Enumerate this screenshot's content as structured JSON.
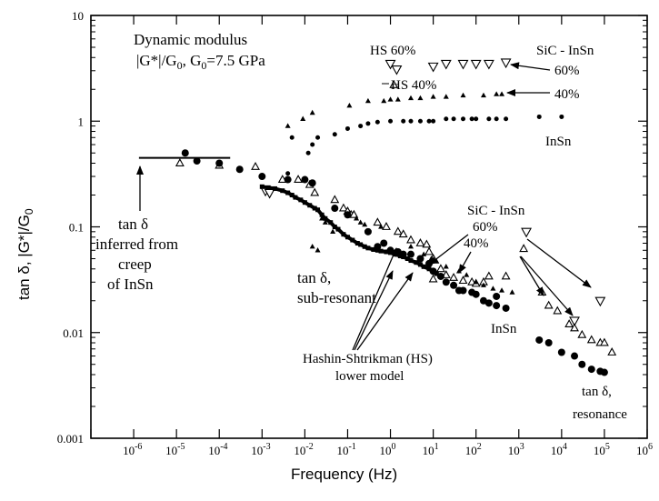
{
  "chart_data": {
    "type": "scatter",
    "title": "",
    "xlabel": "Frequency (Hz)",
    "ylabel": "tan δ, |G*|/G",
    "ylabel_sub": "0",
    "xscale": "log",
    "yscale": "log",
    "xlim": [
      1e-07,
      1000000.0
    ],
    "ylim": [
      0.001,
      10
    ],
    "x_tick_labels": [
      {
        "base": "10",
        "exp": "-6"
      },
      {
        "base": "10",
        "exp": "-5"
      },
      {
        "base": "10",
        "exp": "-4"
      },
      {
        "base": "10",
        "exp": "-3"
      },
      {
        "base": "10",
        "exp": "-2"
      },
      {
        "base": "10",
        "exp": "-1"
      },
      {
        "base": "10",
        "exp": "0"
      },
      {
        "base": "10",
        "exp": "1"
      },
      {
        "base": "10",
        "exp": "2"
      },
      {
        "base": "10",
        "exp": "3"
      },
      {
        "base": "10",
        "exp": "4"
      },
      {
        "base": "10",
        "exp": "5"
      },
      {
        "base": "10",
        "exp": "6"
      }
    ],
    "y_tick_labels": [
      "0.001",
      "0.01",
      "0.1",
      "1",
      "10"
    ],
    "series": [
      {
        "marker": "inverted-triangle-open",
        "size": 10,
        "points": [
          [
            1,
            3.5
          ],
          [
            1.4,
            3.1
          ],
          [
            10,
            3.3
          ],
          [
            20,
            3.5
          ],
          [
            50,
            3.5
          ],
          [
            100,
            3.5
          ],
          [
            200,
            3.5
          ],
          [
            500,
            3.6
          ],
          [
            0.0012,
            0.22
          ],
          [
            0.0015,
            0.21
          ],
          [
            1500,
            0.09
          ],
          [
            20000,
            0.013
          ],
          [
            80000,
            0.02
          ]
        ]
      },
      {
        "marker": "triangle-open",
        "size": 8,
        "points": [
          [
            1.2,
            2.2
          ],
          [
            1.2e-05,
            0.4
          ],
          [
            0.0001,
            0.38
          ],
          [
            0.0007,
            0.37
          ],
          [
            0.003,
            0.28
          ],
          [
            0.007,
            0.28
          ],
          [
            0.013,
            0.25
          ],
          [
            0.017,
            0.21
          ],
          [
            0.05,
            0.18
          ],
          [
            0.08,
            0.15
          ],
          [
            0.1,
            0.14
          ],
          [
            0.12,
            0.13
          ],
          [
            0.14,
            0.13
          ],
          [
            0.5,
            0.11
          ],
          [
            0.8,
            0.1
          ],
          [
            1.5,
            0.09
          ],
          [
            2,
            0.085
          ],
          [
            3,
            0.075
          ],
          [
            5,
            0.07
          ],
          [
            7,
            0.068
          ],
          [
            8,
            0.058
          ],
          [
            10,
            0.05
          ],
          [
            15,
            0.04
          ],
          [
            20,
            0.035
          ],
          [
            30,
            0.033
          ],
          [
            50,
            0.031
          ],
          [
            80,
            0.03
          ],
          [
            100,
            0.029
          ],
          [
            150,
            0.03
          ],
          [
            200,
            0.034
          ],
          [
            500,
            0.034
          ],
          [
            1300,
            0.062
          ],
          [
            3500,
            0.024
          ],
          [
            5000,
            0.018
          ],
          [
            8000,
            0.016
          ],
          [
            15000,
            0.012
          ],
          [
            20000,
            0.011
          ],
          [
            30000,
            0.0095
          ],
          [
            50000,
            0.0085
          ],
          [
            80000,
            0.008
          ],
          [
            100000,
            0.008
          ],
          [
            150000,
            0.0065
          ],
          [
            10,
            0.032
          ]
        ]
      },
      {
        "marker": "triangle-filled",
        "size": 6,
        "points": [
          [
            0.004,
            0.9
          ],
          [
            0.009,
            1.05
          ],
          [
            0.015,
            1.2
          ],
          [
            0.11,
            1.4
          ],
          [
            0.3,
            1.55
          ],
          [
            0.7,
            1.55
          ],
          [
            1,
            1.6
          ],
          [
            1.5,
            1.6
          ],
          [
            3,
            1.65
          ],
          [
            5,
            1.65
          ],
          [
            10,
            1.7
          ],
          [
            20,
            1.7
          ],
          [
            50,
            1.75
          ],
          [
            150,
            1.75
          ],
          [
            300,
            1.8
          ],
          [
            400,
            1.8
          ],
          [
            0.015,
            0.065
          ],
          [
            0.02,
            0.06
          ],
          [
            0.025,
            0.12
          ],
          [
            0.03,
            0.11
          ],
          [
            0.045,
            0.09
          ],
          [
            0.16,
            0.12
          ],
          [
            0.2,
            0.11
          ],
          [
            0.25,
            0.105
          ],
          [
            0.6,
            0.1
          ],
          [
            3,
            0.065
          ],
          [
            6,
            0.055
          ],
          [
            9,
            0.05
          ],
          [
            12,
            0.047
          ],
          [
            20,
            0.042
          ],
          [
            40,
            0.038
          ],
          [
            60,
            0.035
          ],
          [
            100,
            0.03
          ],
          [
            150,
            0.028
          ],
          [
            250,
            0.026
          ],
          [
            400,
            0.025
          ],
          [
            700,
            0.024
          ]
        ]
      },
      {
        "marker": "circle-filled",
        "size": 4,
        "points": [
          [
            0.004,
            0.32
          ],
          [
            0.005,
            0.7
          ],
          [
            0.012,
            0.5
          ],
          [
            0.015,
            0.6
          ],
          [
            0.02,
            0.7
          ],
          [
            0.05,
            0.75
          ],
          [
            0.1,
            0.85
          ],
          [
            0.2,
            0.9
          ],
          [
            0.3,
            0.95
          ],
          [
            0.5,
            0.98
          ],
          [
            1,
            1.0
          ],
          [
            2,
            1.0
          ],
          [
            3,
            1.0
          ],
          [
            5,
            1.0
          ],
          [
            8,
            1.0
          ],
          [
            10,
            1.0
          ],
          [
            20,
            1.05
          ],
          [
            30,
            1.05
          ],
          [
            50,
            1.05
          ],
          [
            80,
            1.05
          ],
          [
            100,
            1.05
          ],
          [
            200,
            1.05
          ],
          [
            300,
            1.05
          ],
          [
            500,
            1.05
          ],
          [
            3000,
            1.1
          ],
          [
            10000,
            1.1
          ]
        ]
      },
      {
        "marker": "circle-filled",
        "size": 7,
        "points": [
          [
            1.6e-05,
            0.5
          ],
          [
            3e-05,
            0.42
          ],
          [
            0.0001,
            0.4
          ],
          [
            0.0003,
            0.35
          ],
          [
            0.001,
            0.3
          ],
          [
            0.004,
            0.28
          ],
          [
            0.01,
            0.28
          ],
          [
            0.015,
            0.26
          ],
          [
            0.05,
            0.15
          ],
          [
            0.1,
            0.13
          ],
          [
            0.3,
            0.09
          ],
          [
            0.5,
            0.065
          ],
          [
            0.7,
            0.07
          ],
          [
            1,
            0.06
          ],
          [
            1.5,
            0.058
          ],
          [
            2,
            0.055
          ],
          [
            3,
            0.055
          ],
          [
            5,
            0.05
          ],
          [
            8,
            0.045
          ],
          [
            10,
            0.038
          ],
          [
            15,
            0.034
          ],
          [
            20,
            0.03
          ],
          [
            30,
            0.028
          ],
          [
            50,
            0.025
          ],
          [
            80,
            0.024
          ],
          [
            100,
            0.023
          ],
          [
            150,
            0.02
          ],
          [
            200,
            0.019
          ],
          [
            300,
            0.018
          ],
          [
            500,
            0.017
          ],
          [
            3000,
            0.0085
          ],
          [
            5000,
            0.008
          ],
          [
            10000,
            0.0065
          ],
          [
            20000,
            0.006
          ],
          [
            30000,
            0.005
          ],
          [
            50000,
            0.0045
          ],
          [
            80000,
            0.0043
          ],
          [
            100000,
            0.0042
          ],
          [
            300,
            0.022
          ],
          [
            40,
            0.025
          ]
        ]
      },
      {
        "marker": "square-filled-line",
        "size": 5,
        "points": [
          [
            0.001,
            0.24
          ],
          [
            0.0014,
            0.235
          ],
          [
            0.002,
            0.23
          ],
          [
            0.003,
            0.22
          ],
          [
            0.004,
            0.21
          ],
          [
            0.005,
            0.2
          ],
          [
            0.006,
            0.19
          ],
          [
            0.008,
            0.18
          ],
          [
            0.01,
            0.17
          ],
          [
            0.013,
            0.16
          ],
          [
            0.017,
            0.15
          ],
          [
            0.02,
            0.145
          ],
          [
            0.025,
            0.13
          ],
          [
            0.03,
            0.12
          ],
          [
            0.04,
            0.11
          ],
          [
            0.05,
            0.1
          ],
          [
            0.06,
            0.095
          ],
          [
            0.08,
            0.085
          ],
          [
            0.1,
            0.08
          ],
          [
            0.13,
            0.075
          ],
          [
            0.17,
            0.07
          ],
          [
            0.2,
            0.068
          ],
          [
            0.25,
            0.065
          ],
          [
            0.3,
            0.063
          ],
          [
            0.4,
            0.061
          ],
          [
            0.5,
            0.06
          ],
          [
            0.6,
            0.059
          ],
          [
            0.8,
            0.058
          ],
          [
            1,
            0.057
          ],
          [
            1.3,
            0.055
          ],
          [
            1.7,
            0.053
          ],
          [
            2,
            0.052
          ],
          [
            2.5,
            0.05
          ],
          [
            3,
            0.048
          ],
          [
            4,
            0.046
          ],
          [
            5,
            0.044
          ],
          [
            6,
            0.042
          ],
          [
            8,
            0.04
          ],
          [
            10,
            0.038
          ],
          [
            12,
            0.036
          ]
        ]
      }
    ],
    "reference_line": {
      "x": [
        1.2e-05,
        0.0001
      ],
      "y": 0.45
    },
    "annotations": {
      "dynamic_modulus": {
        "line1": "Dynamic modulus",
        "line2_pre": "|G*|/G",
        "line2_sub": "0",
        "line2_mid": ", G",
        "line2_sub2": "0",
        "line2_post": "=7.5 GPa"
      },
      "hs60": "HS 60%",
      "hs40": "HS 40%",
      "sic_top": {
        "line1": "SiC - InSn",
        "line2": "60%",
        "line3": "40%"
      },
      "insn_top": "InSn",
      "creep": {
        "line1": "tan δ",
        "line2": "inferred from",
        "line3": "creep",
        "line4": "of InSn"
      },
      "subres": {
        "line1": "tan δ,",
        "line2": "sub-resonant"
      },
      "sic_mid": {
        "line1": "SiC - InSn",
        "line2": "60%",
        "line3": "40%"
      },
      "insn_mid": "InSn",
      "hashin": {
        "line1": "Hashin-Shtrikman (HS)",
        "line2": "lower model"
      },
      "resonance": {
        "line1": "tan δ,",
        "line2": "resonance"
      }
    },
    "legend": "none",
    "grid": false
  }
}
